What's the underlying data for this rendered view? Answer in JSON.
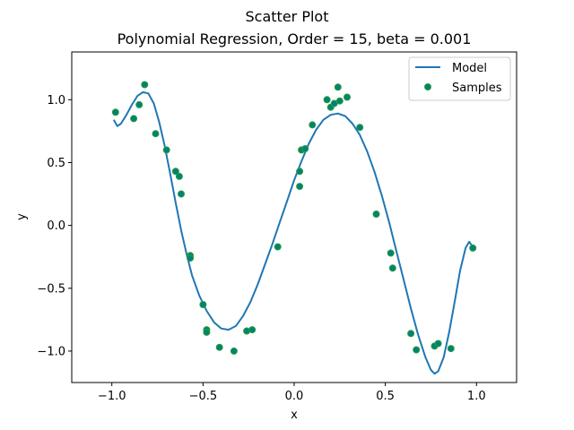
{
  "chart_data": {
    "type": "scatter",
    "title": "Scatter Plot",
    "subtitle": "Polynomial Regression, Order = 15, beta = 0.001",
    "xlabel": "x",
    "ylabel": "y",
    "xlim": [
      -1.22,
      1.22
    ],
    "ylim": [
      -1.25,
      1.38
    ],
    "xticks": [
      -1.0,
      -0.5,
      0.0,
      0.5,
      1.0
    ],
    "xtick_labels": [
      "−1.0",
      "−0.5",
      "0.0",
      "0.5",
      "1.0"
    ],
    "yticks": [
      -1.0,
      -0.5,
      0.0,
      0.5,
      1.0
    ],
    "ytick_labels": [
      "−1.0",
      "−0.5",
      "0.0",
      "0.5",
      "1.0"
    ],
    "grid": false,
    "legend": {
      "position": "top-right",
      "entries": [
        "Model",
        "Samples"
      ]
    },
    "colors": {
      "model": "#1f77b4",
      "samples_fill": "#008080",
      "samples_edge": "#2ca02c"
    },
    "series": [
      {
        "name": "Model",
        "kind": "line",
        "points": [
          [
            -0.99,
            0.84
          ],
          [
            -0.97,
            0.79
          ],
          [
            -0.95,
            0.81
          ],
          [
            -0.92,
            0.88
          ],
          [
            -0.89,
            0.96
          ],
          [
            -0.86,
            1.03
          ],
          [
            -0.83,
            1.06
          ],
          [
            -0.8,
            1.05
          ],
          [
            -0.77,
            0.97
          ],
          [
            -0.74,
            0.82
          ],
          [
            -0.71,
            0.63
          ],
          [
            -0.68,
            0.41
          ],
          [
            -0.65,
            0.18
          ],
          [
            -0.62,
            -0.04
          ],
          [
            -0.59,
            -0.23
          ],
          [
            -0.56,
            -0.4
          ],
          [
            -0.52,
            -0.56
          ],
          [
            -0.48,
            -0.68
          ],
          [
            -0.44,
            -0.77
          ],
          [
            -0.4,
            -0.82
          ],
          [
            -0.36,
            -0.83
          ],
          [
            -0.32,
            -0.8
          ],
          [
            -0.28,
            -0.72
          ],
          [
            -0.24,
            -0.61
          ],
          [
            -0.2,
            -0.47
          ],
          [
            -0.16,
            -0.31
          ],
          [
            -0.12,
            -0.15
          ],
          [
            -0.08,
            0.02
          ],
          [
            -0.04,
            0.19
          ],
          [
            0.0,
            0.36
          ],
          [
            0.04,
            0.51
          ],
          [
            0.08,
            0.65
          ],
          [
            0.12,
            0.76
          ],
          [
            0.16,
            0.84
          ],
          [
            0.2,
            0.88
          ],
          [
            0.24,
            0.89
          ],
          [
            0.28,
            0.87
          ],
          [
            0.32,
            0.81
          ],
          [
            0.36,
            0.72
          ],
          [
            0.4,
            0.59
          ],
          [
            0.44,
            0.43
          ],
          [
            0.48,
            0.24
          ],
          [
            0.52,
            0.03
          ],
          [
            0.56,
            -0.2
          ],
          [
            0.6,
            -0.43
          ],
          [
            0.64,
            -0.66
          ],
          [
            0.68,
            -0.87
          ],
          [
            0.72,
            -1.05
          ],
          [
            0.75,
            -1.15
          ],
          [
            0.77,
            -1.18
          ],
          [
            0.79,
            -1.16
          ],
          [
            0.82,
            -1.05
          ],
          [
            0.85,
            -0.85
          ],
          [
            0.88,
            -0.61
          ],
          [
            0.91,
            -0.36
          ],
          [
            0.94,
            -0.18
          ],
          [
            0.96,
            -0.13
          ],
          [
            0.98,
            -0.17
          ]
        ]
      },
      {
        "name": "Samples",
        "kind": "scatter",
        "points": [
          [
            -0.98,
            0.9
          ],
          [
            -0.88,
            0.85
          ],
          [
            -0.85,
            0.96
          ],
          [
            -0.82,
            1.12
          ],
          [
            -0.76,
            0.73
          ],
          [
            -0.7,
            0.6
          ],
          [
            -0.65,
            0.43
          ],
          [
            -0.63,
            0.39
          ],
          [
            -0.62,
            0.25
          ],
          [
            -0.57,
            -0.24
          ],
          [
            -0.57,
            -0.26
          ],
          [
            -0.5,
            -0.63
          ],
          [
            -0.48,
            -0.83
          ],
          [
            -0.48,
            -0.85
          ],
          [
            -0.41,
            -0.97
          ],
          [
            -0.33,
            -1.0
          ],
          [
            -0.26,
            -0.84
          ],
          [
            -0.23,
            -0.83
          ],
          [
            -0.09,
            -0.17
          ],
          [
            0.03,
            0.31
          ],
          [
            0.03,
            0.43
          ],
          [
            0.04,
            0.6
          ],
          [
            0.06,
            0.61
          ],
          [
            0.1,
            0.8
          ],
          [
            0.18,
            1.0
          ],
          [
            0.2,
            0.94
          ],
          [
            0.22,
            0.97
          ],
          [
            0.24,
            1.1
          ],
          [
            0.25,
            0.99
          ],
          [
            0.29,
            1.02
          ],
          [
            0.36,
            0.78
          ],
          [
            0.45,
            0.09
          ],
          [
            0.53,
            -0.22
          ],
          [
            0.54,
            -0.34
          ],
          [
            0.64,
            -0.86
          ],
          [
            0.67,
            -0.99
          ],
          [
            0.77,
            -0.96
          ],
          [
            0.79,
            -0.94
          ],
          [
            0.86,
            -0.98
          ],
          [
            0.98,
            -0.18
          ]
        ]
      }
    ]
  }
}
